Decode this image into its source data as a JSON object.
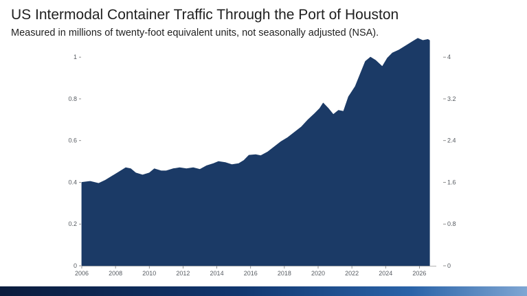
{
  "page": {
    "title": "US Intermodal Container Traffic Through the Port of Houston",
    "subtitle": "Measured in millions of twenty-foot equivalent units, not seasonally adjusted (NSA)."
  },
  "chart_data": {
    "type": "area",
    "title": "US Intermodal Container Traffic Through the Port of Houston",
    "subtitle": "Measured in millions of twenty-foot equivalent units, not seasonally adjusted (NSA).",
    "xlabel": "",
    "ylabel": "",
    "color": "#1b3a66",
    "grid": false,
    "legend": "none",
    "xlim": [
      2006,
      2027
    ],
    "ylim": [
      0,
      1.05
    ],
    "y2lim": [
      0,
      4.2
    ],
    "x_ticks": [
      2006,
      2008,
      2010,
      2012,
      2014,
      2016,
      2018,
      2020,
      2022,
      2024,
      2026
    ],
    "x_tick_labels": [
      "2006",
      "2008",
      "2010",
      "2012",
      "2014",
      "2016",
      "2018",
      "2020",
      "2022",
      "2024",
      "2026"
    ],
    "y_ticks": [
      0,
      0.2,
      0.4,
      0.6,
      0.8,
      1
    ],
    "y_tick_labels": [
      "0",
      "0.2",
      "0.4",
      "0.6",
      "0.8",
      "1"
    ],
    "y2_ticks": [
      0,
      0.8,
      1.6,
      2.4,
      3.2,
      4
    ],
    "y2_tick_labels": [
      "0",
      "0.8",
      "1.6",
      "2.4",
      "3.2",
      "4"
    ],
    "series": [
      {
        "x": [
          2006.0,
          2006.5,
          2007.0,
          2007.4,
          2007.8,
          2008.2,
          2008.6,
          2008.9,
          2009.2,
          2009.6,
          2010.0,
          2010.3,
          2010.7,
          2011.0,
          2011.4,
          2011.8,
          2012.2,
          2012.6,
          2013.0,
          2013.4,
          2013.8,
          2014.1,
          2014.5,
          2014.9,
          2015.3,
          2015.6,
          2015.9,
          2016.3,
          2016.6,
          2017.0,
          2017.4,
          2017.8,
          2018.2,
          2018.6,
          2019.0,
          2019.4,
          2019.8,
          2020.1,
          2020.3,
          2020.6,
          2020.9,
          2021.2,
          2021.5,
          2021.8,
          2022.2,
          2022.5,
          2022.8,
          2023.1,
          2023.4,
          2023.8,
          2024.1,
          2024.4,
          2024.8,
          2025.2,
          2025.6,
          2025.9,
          2026.2,
          2026.5,
          2026.6
        ],
        "values": [
          0.4,
          0.405,
          0.395,
          0.41,
          0.43,
          0.45,
          0.47,
          0.465,
          0.445,
          0.435,
          0.445,
          0.465,
          0.455,
          0.455,
          0.465,
          0.47,
          0.465,
          0.47,
          0.462,
          0.48,
          0.49,
          0.5,
          0.495,
          0.485,
          0.49,
          0.505,
          0.53,
          0.533,
          0.528,
          0.545,
          0.57,
          0.595,
          0.615,
          0.64,
          0.665,
          0.7,
          0.73,
          0.755,
          0.78,
          0.755,
          0.725,
          0.745,
          0.74,
          0.81,
          0.86,
          0.92,
          0.98,
          1.0,
          0.985,
          0.955,
          0.995,
          1.02,
          1.035,
          1.055,
          1.075,
          1.09,
          1.08,
          1.085,
          1.08
        ]
      }
    ]
  }
}
